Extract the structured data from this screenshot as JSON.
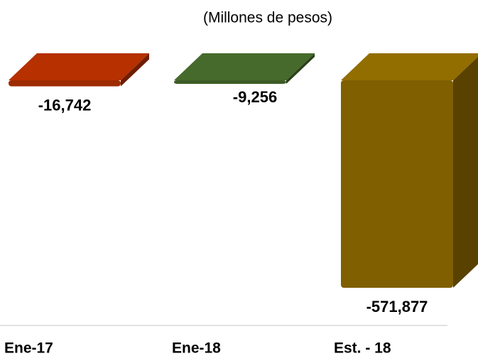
{
  "chart_data": {
    "type": "bar3d",
    "title": "(Millones de pesos)",
    "categories": [
      "Ene-17",
      "Ene-18",
      "Est. - 18"
    ],
    "values": [
      -16742,
      -9256,
      -571877
    ],
    "value_labels": [
      "-16,742",
      "-9,256",
      "-571,877"
    ],
    "colors": [
      "#9e2a00",
      "#3d5c26",
      "#7f5f00"
    ]
  }
}
